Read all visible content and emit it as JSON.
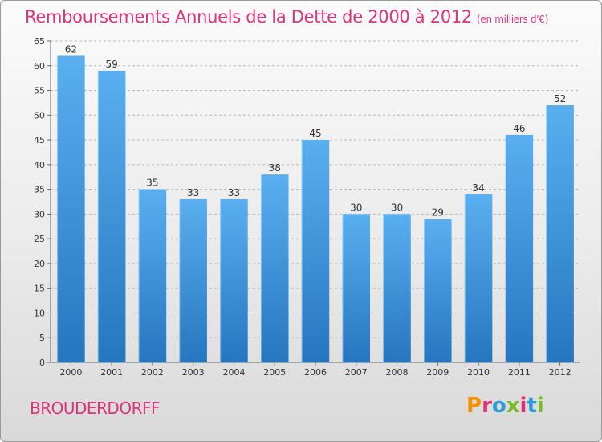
{
  "header": {
    "title": "Remboursements Annuels de la Dette de 2000 à 2012",
    "subtitle": "(en milliers d'€)"
  },
  "footer": {
    "commune": "BROUDERDORFF"
  },
  "logo": {
    "text": "Proxiti",
    "letter_colors": [
      "#f39200",
      "#e0317a",
      "#2a9bd7",
      "#7ab929",
      "#e0317a",
      "#2a9bd7",
      "#7ab929"
    ]
  },
  "colors": {
    "title": "#e0317a",
    "bar_top": "#5aaff0",
    "bar_bottom": "#2676bf",
    "grid": "#b8b8b8"
  },
  "chart_data": {
    "type": "bar",
    "title": "Remboursements Annuels de la Dette de 2000 à 2012",
    "subtitle": "(en milliers d'€)",
    "categories": [
      "2000",
      "2001",
      "2002",
      "2003",
      "2004",
      "2005",
      "2006",
      "2007",
      "2008",
      "2009",
      "2010",
      "2011",
      "2012"
    ],
    "values": [
      62,
      59,
      35,
      33,
      33,
      38,
      45,
      30,
      30,
      29,
      34,
      46,
      52
    ],
    "ylim": [
      0,
      65
    ],
    "yticks": [
      0,
      5,
      10,
      15,
      20,
      25,
      30,
      35,
      40,
      45,
      50,
      55,
      60,
      65
    ],
    "grid": "horizontal-dashed",
    "data_labels": true
  }
}
